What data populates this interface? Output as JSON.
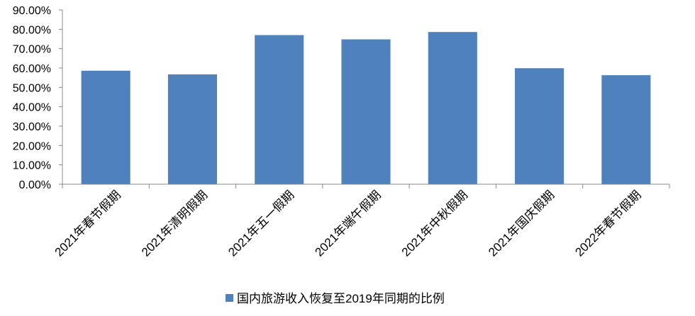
{
  "chart_data": {
    "type": "bar",
    "categories": [
      "2021年春节假期",
      "2021年清明假期",
      "2021年五一假期",
      "2021年端午假期",
      "2021年中秋假期",
      "2021年国庆假期",
      "2022年春节假期"
    ],
    "series": [
      {
        "name": "国内旅游收入恢复至2019年同期的比例",
        "values": [
          58.6,
          56.7,
          77.0,
          74.8,
          78.6,
          59.9,
          56.3
        ],
        "color": "#4F81BD"
      }
    ],
    "yticks": [
      "0.00%",
      "10.00%",
      "20.00%",
      "30.00%",
      "40.00%",
      "50.00%",
      "60.00%",
      "70.00%",
      "80.00%",
      "90.00%"
    ],
    "ylim": [
      0,
      90
    ],
    "grid": false,
    "legend_position": "bottom"
  }
}
